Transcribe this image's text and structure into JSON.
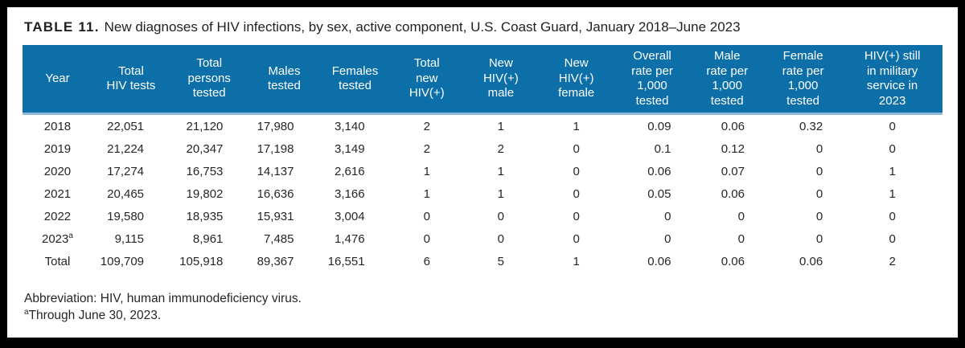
{
  "title": {
    "label": "TABLE 11.",
    "text": "New diagnoses of HIV infections, by sex, active component, U.S. Coast Guard, January 2018–June 2023"
  },
  "table": {
    "columns": [
      "Year",
      "Total\nHIV tests",
      "Total\npersons\ntested",
      "Males\ntested",
      "Females\ntested",
      "Total\nnew\nHIV(+)",
      "New\nHIV(+)\nmale",
      "New\nHIV(+)\nfemale",
      "Overall\nrate per\n1,000\ntested",
      "Male\nrate per\n1,000\ntested",
      "Female\nrate per\n1,000\ntested",
      "HIV(+) still\nin military\nservice in\n2023"
    ],
    "rows": [
      [
        "2018",
        "22,051",
        "21,120",
        "17,980",
        "3,140",
        "2",
        "1",
        "1",
        "0.09",
        "0.06",
        "0.32",
        "0"
      ],
      [
        "2019",
        "21,224",
        "20,347",
        "17,198",
        "3,149",
        "2",
        "2",
        "0",
        "0.1",
        "0.12",
        "0",
        "0"
      ],
      [
        "2020",
        "17,274",
        "16,753",
        "14,137",
        "2,616",
        "1",
        "1",
        "0",
        "0.06",
        "0.07",
        "0",
        "1"
      ],
      [
        "2021",
        "20,465",
        "19,802",
        "16,636",
        "3,166",
        "1",
        "1",
        "0",
        "0.05",
        "0.06",
        "0",
        "1"
      ],
      [
        "2022",
        "19,580",
        "18,935",
        "15,931",
        "3,004",
        "0",
        "0",
        "0",
        "0",
        "0",
        "0",
        "0"
      ],
      [
        {
          "text": "2023",
          "sup": "a"
        },
        "9,115",
        "8,961",
        "7,485",
        "1,476",
        "0",
        "0",
        "0",
        "0",
        "0",
        "0",
        "0"
      ],
      [
        "Total",
        "109,709",
        "105,918",
        "89,367",
        "16,551",
        "6",
        "5",
        "1",
        "0.06",
        "0.06",
        "0.06",
        "2"
      ]
    ]
  },
  "footnotes": [
    {
      "text": "Abbreviation: HIV, human immunodeficiency virus."
    },
    {
      "sup": "a",
      "text": "Through June 30, 2023."
    }
  ],
  "colors": {
    "header_bg": "#0d6fa8",
    "header_divider": "#8db8d8",
    "frame": "#000000",
    "text": "#262626"
  }
}
